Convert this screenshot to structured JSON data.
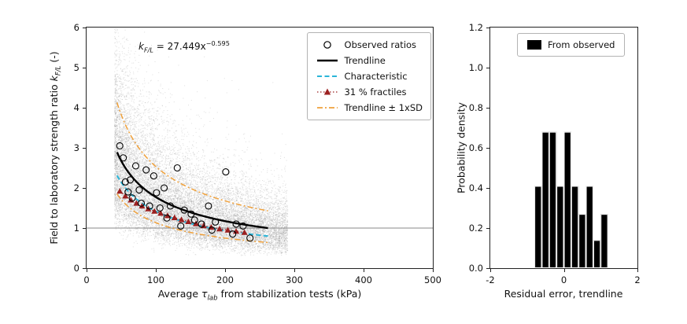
{
  "colors": {
    "observed": "#000000",
    "trendline": "#000000",
    "characteristic": "#2ab5d8",
    "fractiles": "#9b2020",
    "sd_band": "#efa03a",
    "cloud": "#919191",
    "hline": "#888888",
    "bars": "#000000",
    "frame": "#222222"
  },
  "labels": {
    "left_y_prefix": "Field to laboratory strength ratio ",
    "left_y_k": "k",
    "left_y_sub": "F/L",
    "left_y_suffix": " (-)",
    "left_x_prefix": "Average ",
    "left_x_tau": "τ",
    "left_x_sub": "lab",
    "left_x_suffix": " from stabilization tests (kPa)",
    "right_y": "Probability density",
    "right_x": "Residual error, trendline"
  },
  "annotation": {
    "k": "k",
    "sub": "F/L",
    "mid": " = 27.449x",
    "exp": "−0.595"
  },
  "legend_left": {
    "items": [
      {
        "label": "Observed ratios"
      },
      {
        "label": "Trendline"
      },
      {
        "label": "Characteristic"
      },
      {
        "label": "31 % fractiles"
      },
      {
        "label": "Trendline ± 1xSD"
      }
    ]
  },
  "legend_right": {
    "label": "From observed"
  },
  "chart_data": [
    {
      "type": "scatter",
      "title": "",
      "xlabel": "Average τ_lab from stabilization tests (kPa)",
      "ylabel": "Field to laboratory strength ratio k_F/L (-)",
      "xlim": [
        0,
        500
      ],
      "ylim": [
        0,
        6
      ],
      "xticks": [
        0,
        100,
        200,
        300,
        400,
        500
      ],
      "yticks": [
        0,
        1,
        2,
        3,
        4,
        5,
        6
      ],
      "xtick_decimals": 0,
      "ytick_decimals": 0,
      "hline_y": 1,
      "trendline": {
        "equation": "k_F/L = 27.449x^-0.595",
        "a": 27.449,
        "b": -0.595,
        "x_range": [
          44,
          262
        ]
      },
      "characteristic_scale": 0.8,
      "sd_band_scales": [
        0.64,
        1.43
      ],
      "series": {
        "observed_ratios": [
          [
            48,
            3.05
          ],
          [
            53,
            2.75
          ],
          [
            56,
            2.15
          ],
          [
            60,
            1.9
          ],
          [
            63,
            2.2
          ],
          [
            66,
            1.75
          ],
          [
            71,
            2.55
          ],
          [
            76,
            1.95
          ],
          [
            79,
            1.62
          ],
          [
            86,
            2.45
          ],
          [
            91,
            1.55
          ],
          [
            97,
            2.3
          ],
          [
            101,
            1.88
          ],
          [
            106,
            1.5
          ],
          [
            112,
            2.0
          ],
          [
            116,
            1.25
          ],
          [
            121,
            1.55
          ],
          [
            131,
            2.5
          ],
          [
            136,
            1.05
          ],
          [
            141,
            1.45
          ],
          [
            151,
            1.35
          ],
          [
            156,
            1.2
          ],
          [
            166,
            1.1
          ],
          [
            176,
            1.55
          ],
          [
            181,
            0.95
          ],
          [
            186,
            1.15
          ],
          [
            201,
            2.4
          ],
          [
            211,
            0.85
          ],
          [
            216,
            1.1
          ],
          [
            226,
            1.05
          ],
          [
            236,
            0.75
          ]
        ],
        "fractiles_31pct": [
          [
            48,
            1.92
          ],
          [
            56,
            1.8
          ],
          [
            64,
            1.7
          ],
          [
            72,
            1.62
          ],
          [
            80,
            1.55
          ],
          [
            89,
            1.48
          ],
          [
            98,
            1.42
          ],
          [
            107,
            1.37
          ],
          [
            117,
            1.31
          ],
          [
            127,
            1.26
          ],
          [
            137,
            1.21
          ],
          [
            147,
            1.16
          ],
          [
            158,
            1.11
          ],
          [
            169,
            1.06
          ],
          [
            180,
            1.02
          ],
          [
            192,
            0.98
          ],
          [
            204,
            0.95
          ],
          [
            216,
            0.92
          ],
          [
            228,
            0.89
          ]
        ]
      },
      "cloud": {
        "description": "dense simulated background scatter around trendline",
        "n": 16000,
        "seed": 7,
        "x_range": [
          40,
          290
        ],
        "x_pow": 1.35,
        "lognormal_sd": 0.4,
        "y_clip": [
          0.32,
          6
        ]
      }
    },
    {
      "type": "bar",
      "title": "",
      "xlabel": "Residual error, trendline",
      "ylabel": "Probability density",
      "xlim": [
        -2,
        2
      ],
      "ylim": [
        0,
        1.2
      ],
      "xticks": [
        -2,
        0,
        2
      ],
      "yticks": [
        0,
        0.2,
        0.4,
        0.6,
        0.8,
        1.0,
        1.2
      ],
      "xtick_decimals": 0,
      "ytick_decimals": 1,
      "legend": "From observed",
      "bins_start": -0.8,
      "bin_width": 0.2,
      "densities": [
        0.41,
        0.68,
        0.68,
        0.41,
        0.68,
        0.41,
        0.27,
        0.41,
        0.14,
        0.27
      ]
    }
  ]
}
